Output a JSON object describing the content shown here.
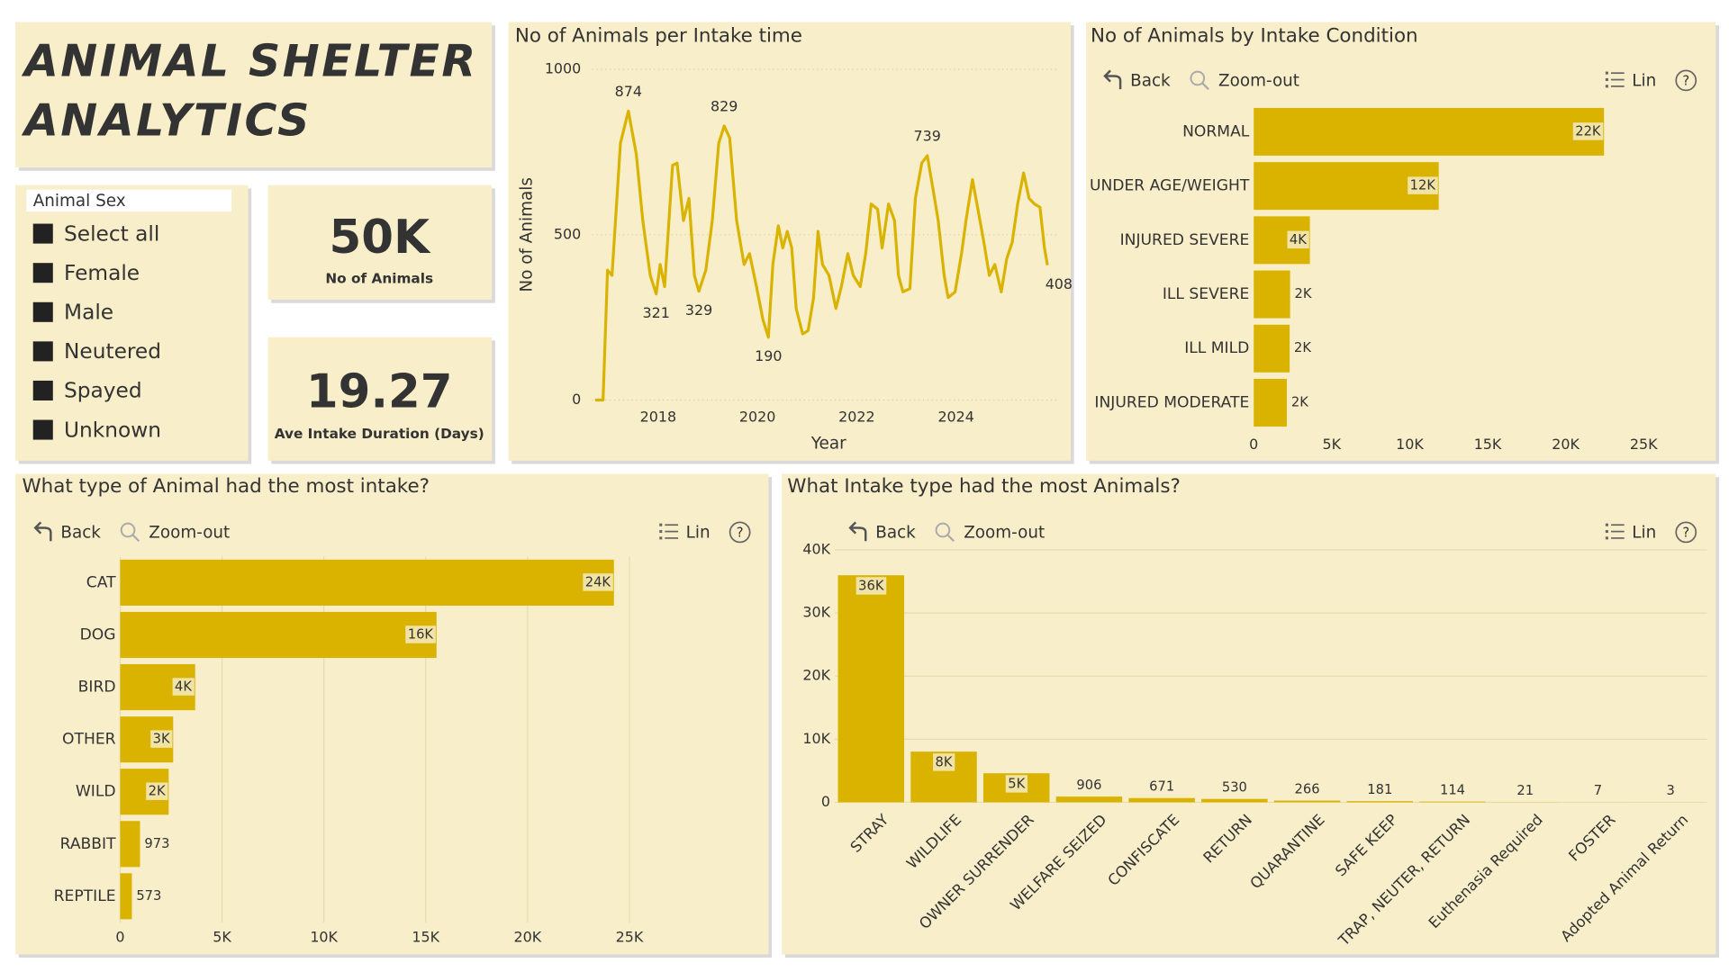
{
  "title_lines": [
    "ANIMAL SHELTER",
    "ANALYTICS"
  ],
  "slicer": {
    "title": "Animal Sex",
    "items": [
      "Select all",
      "Female",
      "Male",
      "Neutered",
      "Spayed",
      "Unknown"
    ]
  },
  "kpis": [
    {
      "value": "50K",
      "label": "No of Animals"
    },
    {
      "value": "19.27",
      "label": "Ave Intake Duration (Days)"
    }
  ],
  "toolbar": {
    "back": "Back",
    "zoom_out": "Zoom-out",
    "legend": "Lin"
  },
  "chart_data": [
    {
      "type": "line",
      "title": "No of Animals per Intake time",
      "x_label": "Year",
      "y_label": "No of Animals",
      "color": "#d9b300",
      "x": [
        2016.73,
        2016.89,
        2016.98,
        2017.07,
        2017.24,
        2017.4,
        2017.56,
        2017.69,
        2017.84,
        2017.96,
        2018.04,
        2018.13,
        2018.29,
        2018.38,
        2018.51,
        2018.62,
        2018.73,
        2018.82,
        2018.96,
        2019.09,
        2019.22,
        2019.33,
        2019.44,
        2019.58,
        2019.73,
        2019.84,
        2019.98,
        2020.11,
        2020.22,
        2020.31,
        2020.42,
        2020.51,
        2020.6,
        2020.69,
        2020.78,
        2020.91,
        2021.02,
        2021.13,
        2021.22,
        2021.31,
        2021.44,
        2021.58,
        2021.69,
        2021.82,
        2021.93,
        2022.07,
        2022.18,
        2022.29,
        2022.42,
        2022.51,
        2022.64,
        2022.76,
        2022.84,
        2022.93,
        2023.07,
        2023.18,
        2023.31,
        2023.42,
        2023.53,
        2023.64,
        2023.76,
        2023.84,
        2023.98,
        2024.11,
        2024.2,
        2024.33,
        2024.44,
        2024.56,
        2024.67,
        2024.78,
        2024.91,
        2025.02,
        2025.13,
        2025.24,
        2025.36,
        2025.47,
        2025.58,
        2025.69,
        2025.78,
        2025.84
      ],
      "values": [
        0,
        0,
        393,
        377,
        777,
        874,
        743,
        543,
        377,
        321,
        410,
        343,
        710,
        717,
        543,
        610,
        377,
        329,
        393,
        543,
        777,
        829,
        793,
        543,
        410,
        443,
        343,
        243,
        190,
        410,
        527,
        460,
        510,
        460,
        277,
        200,
        210,
        310,
        510,
        410,
        377,
        277,
        343,
        443,
        377,
        343,
        443,
        593,
        577,
        460,
        593,
        543,
        377,
        327,
        337,
        610,
        717,
        739,
        643,
        543,
        377,
        310,
        327,
        443,
        543,
        667,
        577,
        477,
        377,
        410,
        327,
        427,
        477,
        593,
        687,
        610,
        593,
        583,
        460,
        408
      ],
      "labeled_points": [
        5,
        9,
        17,
        21,
        28,
        57,
        79
      ],
      "xlim": [
        2016.67,
        2026.02
      ],
      "xticks": [
        2018,
        2020,
        2022,
        2024
      ],
      "ylim": [
        0,
        1000
      ],
      "yticks": [
        0,
        500,
        1000
      ],
      "grid": true
    },
    {
      "type": "bar",
      "orientation": "horizontal",
      "title": "No of Animals by Intake Condition",
      "color": "#d9b300",
      "categories": [
        "NORMAL",
        "UNDER AGE/WEIGHT",
        "INJURED SEVERE",
        "ILL SEVERE",
        "ILL MILD",
        "INJURED MODERATE"
      ],
      "values": [
        22460,
        11860,
        3600,
        2330,
        2300,
        2120
      ],
      "value_labels": [
        "22K",
        "12K",
        "4K",
        "2K",
        "2K",
        "2K"
      ],
      "xlim": [
        0,
        29200
      ],
      "xticks": [
        0,
        {
          "value": 5000,
          "label": "5K"
        },
        {
          "value": 10000,
          "label": "10K"
        },
        {
          "value": 15000,
          "label": "15K"
        },
        {
          "value": 20000,
          "label": "20K"
        },
        {
          "value": 25000,
          "label": "25K"
        }
      ],
      "grid": false
    },
    {
      "type": "bar",
      "orientation": "horizontal",
      "title": "What type of Animal had the most intake?",
      "color": "#d9b300",
      "categories": [
        "CAT",
        "DOG",
        "BIRD",
        "OTHER",
        "WILD",
        "RABBIT",
        "REPTILE"
      ],
      "values": [
        24240,
        15530,
        3680,
        2600,
        2380,
        973,
        573
      ],
      "value_labels": [
        "24K",
        "16K",
        "4K",
        "3K",
        "2K",
        "973",
        "573"
      ],
      "xlim": [
        0,
        30100
      ],
      "xticks": [
        0,
        {
          "value": 5000,
          "label": "5K"
        },
        {
          "value": 10000,
          "label": "10K"
        },
        {
          "value": 15000,
          "label": "15K"
        },
        {
          "value": 20000,
          "label": "20K"
        },
        {
          "value": 25000,
          "label": "25K"
        }
      ],
      "grid": true
    },
    {
      "type": "bar",
      "orientation": "vertical",
      "title": "What Intake type had the most Animals?",
      "color": "#d9b300",
      "categories": [
        "STRAY",
        "WILDLIFE",
        "OWNER SURRENDER",
        "WELFARE SEIZED",
        "CONFISCATE",
        "RETURN",
        "QUARANTINE",
        "SAFE KEEP",
        "TRAP, NEUTER, RETURN",
        "Euthenasia Required",
        "FOSTER",
        "Adopted Animal Return"
      ],
      "values": [
        35980,
        8030,
        4600,
        906,
        671,
        530,
        266,
        181,
        114,
        21,
        7,
        3
      ],
      "value_labels": [
        "36K",
        "8K",
        "5K",
        "906",
        "671",
        "530",
        "266",
        "181",
        "114",
        "21",
        "7",
        "3"
      ],
      "ylim": [
        0,
        40000
      ],
      "yticks": [
        0,
        {
          "value": 10000,
          "label": "10K"
        },
        {
          "value": 20000,
          "label": "20K"
        },
        {
          "value": 30000,
          "label": "30K"
        },
        {
          "value": 40000,
          "label": "40K"
        }
      ],
      "grid": true
    }
  ]
}
